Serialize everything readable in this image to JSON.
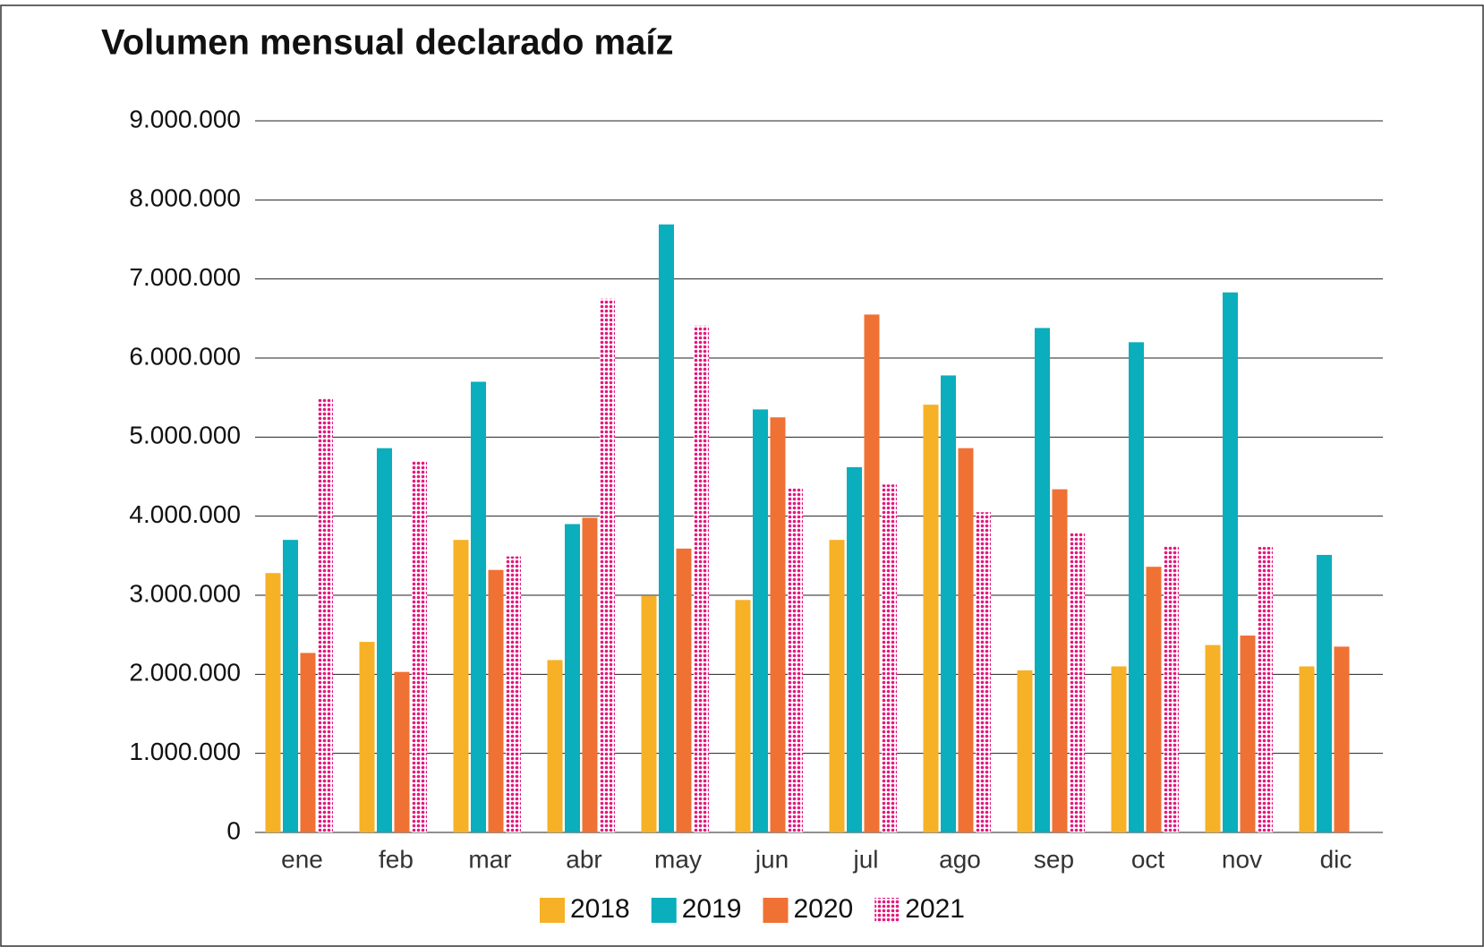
{
  "chart_data": {
    "type": "bar",
    "title": "Volumen mensual declarado maíz",
    "categories": [
      "ene",
      "feb",
      "mar",
      "abr",
      "may",
      "jun",
      "jul",
      "ago",
      "sep",
      "oct",
      "nov",
      "dic"
    ],
    "series": [
      {
        "name": "2018",
        "color": "#f6b126",
        "values": [
          3280000,
          2410000,
          3700000,
          2180000,
          2990000,
          2940000,
          3700000,
          5410000,
          2050000,
          2100000,
          2370000,
          2100000
        ]
      },
      {
        "name": "2019",
        "color": "#0aaebc",
        "values": [
          3700000,
          4860000,
          5700000,
          3900000,
          7690000,
          5350000,
          4620000,
          5780000,
          6380000,
          6200000,
          6830000,
          3510000
        ]
      },
      {
        "name": "2020",
        "color": "#ef7133",
        "values": [
          2270000,
          2030000,
          3320000,
          3980000,
          3590000,
          5250000,
          6550000,
          4860000,
          4340000,
          3360000,
          2490000,
          2350000
        ]
      },
      {
        "name": "2021",
        "color": "#e5177d",
        "pattern": "dots",
        "values": [
          5490000,
          4700000,
          3490000,
          6750000,
          6410000,
          4350000,
          4400000,
          4050000,
          3790000,
          3620000,
          3610000,
          null
        ]
      }
    ],
    "ylim": [
      0,
      9000000
    ],
    "yticks": [
      0,
      {
        "value": 1000000,
        "label": "1.000.000"
      },
      {
        "value": 2000000,
        "label": "2.000.000"
      },
      {
        "value": 3000000,
        "label": "3.000.000"
      },
      {
        "value": 4000000,
        "label": "4.000.000"
      },
      {
        "value": 5000000,
        "label": "5.000.000"
      },
      {
        "value": 6000000,
        "label": "6.000.000"
      },
      {
        "value": 7000000,
        "label": "7.000.000"
      },
      {
        "value": 8000000,
        "label": "8.000.000"
      },
      {
        "value": 9000000,
        "label": "9.000.000"
      }
    ],
    "grid": true,
    "legend": "bottom"
  }
}
